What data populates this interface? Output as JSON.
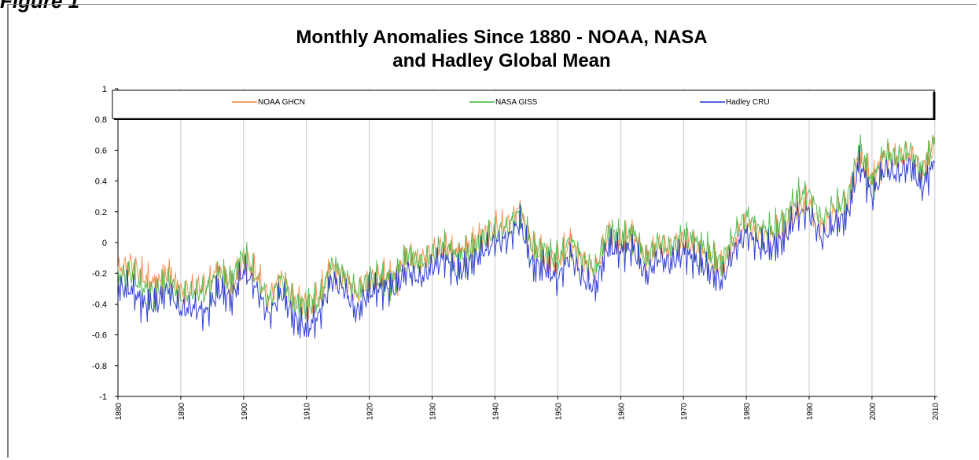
{
  "figure_label": "Figure 1",
  "chart_data": {
    "type": "line",
    "title": "Monthly Anomalies Since 1880 - NOAA, NASA and Hadley Global Mean",
    "title_lines": [
      "Monthly Anomalies Since 1880 - NOAA, NASA",
      "and Hadley Global Mean"
    ],
    "xlabel": "",
    "ylabel": "",
    "xlim": [
      1880,
      2010.4
    ],
    "ylim": [
      -1,
      1
    ],
    "y_ticks": [
      1,
      0.8,
      0.6,
      0.4,
      0.2,
      0,
      -0.2,
      -0.4,
      -0.6,
      -0.8,
      -1
    ],
    "y_tick_labels": [
      "1",
      "0.8",
      "0.6",
      "0.4",
      "0.2",
      "0",
      "-0.2",
      "-0.4",
      "-0.6",
      "-0.8",
      "-1"
    ],
    "x_tick_labels": [
      "1880",
      "1890",
      "1900",
      "1910",
      "1920",
      "1930",
      "1940",
      "1950",
      "1960",
      "1970",
      "1980",
      "1990",
      "2000",
      "2010"
    ],
    "grid": "vertical",
    "legend_position": "top",
    "series": [
      {
        "name": "NOAA GHCN",
        "color": "#f4843c",
        "x": [
          1880,
          1882,
          1884,
          1886,
          1888,
          1890,
          1892,
          1894,
          1896,
          1898,
          1900,
          1902,
          1904,
          1906,
          1908,
          1910,
          1912,
          1914,
          1916,
          1918,
          1920,
          1922,
          1924,
          1926,
          1928,
          1930,
          1932,
          1934,
          1936,
          1938,
          1940,
          1942,
          1944,
          1946,
          1948,
          1950,
          1952,
          1954,
          1956,
          1958,
          1960,
          1962,
          1964,
          1966,
          1968,
          1970,
          1972,
          1974,
          1976,
          1978,
          1980,
          1982,
          1984,
          1986,
          1988,
          1990,
          1992,
          1994,
          1996,
          1998,
          2000,
          2002,
          2004,
          2006,
          2008,
          2010
        ],
        "y": [
          -0.18,
          -0.14,
          -0.22,
          -0.28,
          -0.2,
          -0.32,
          -0.3,
          -0.28,
          -0.18,
          -0.3,
          -0.1,
          -0.2,
          -0.36,
          -0.22,
          -0.38,
          -0.4,
          -0.36,
          -0.16,
          -0.24,
          -0.34,
          -0.24,
          -0.22,
          -0.24,
          -0.1,
          -0.12,
          -0.06,
          -0.02,
          -0.08,
          -0.04,
          0.04,
          0.1,
          0.12,
          0.22,
          -0.04,
          -0.08,
          -0.12,
          0.0,
          -0.12,
          -0.2,
          0.06,
          0.0,
          0.04,
          -0.12,
          -0.02,
          -0.04,
          0.02,
          -0.04,
          -0.1,
          -0.16,
          0.0,
          0.12,
          0.06,
          0.04,
          0.08,
          0.24,
          0.26,
          0.1,
          0.2,
          0.22,
          0.58,
          0.4,
          0.56,
          0.54,
          0.58,
          0.46,
          0.64
        ]
      },
      {
        "name": "NASA GISS",
        "color": "#3cb43c",
        "x": [
          1880,
          1882,
          1884,
          1886,
          1888,
          1890,
          1892,
          1894,
          1896,
          1898,
          1900,
          1902,
          1904,
          1906,
          1908,
          1910,
          1912,
          1914,
          1916,
          1918,
          1920,
          1922,
          1924,
          1926,
          1928,
          1930,
          1932,
          1934,
          1936,
          1938,
          1940,
          1942,
          1944,
          1946,
          1948,
          1950,
          1952,
          1954,
          1956,
          1958,
          1960,
          1962,
          1964,
          1966,
          1968,
          1970,
          1972,
          1974,
          1976,
          1978,
          1980,
          1982,
          1984,
          1986,
          1988,
          1990,
          1992,
          1994,
          1996,
          1998,
          2000,
          2002,
          2004,
          2006,
          2008,
          2010
        ],
        "y": [
          -0.22,
          -0.2,
          -0.3,
          -0.32,
          -0.24,
          -0.36,
          -0.32,
          -0.32,
          -0.2,
          -0.26,
          -0.08,
          -0.22,
          -0.38,
          -0.24,
          -0.4,
          -0.42,
          -0.38,
          -0.14,
          -0.22,
          -0.32,
          -0.24,
          -0.24,
          -0.24,
          -0.08,
          -0.14,
          -0.08,
          -0.02,
          -0.1,
          -0.06,
          0.02,
          0.06,
          0.1,
          0.2,
          -0.04,
          -0.06,
          -0.12,
          0.02,
          -0.12,
          -0.18,
          0.08,
          0.02,
          0.06,
          -0.12,
          0.0,
          -0.04,
          0.04,
          0.0,
          -0.06,
          -0.14,
          0.04,
          0.18,
          0.08,
          0.08,
          0.14,
          0.3,
          0.32,
          0.14,
          0.24,
          0.26,
          0.6,
          0.38,
          0.58,
          0.54,
          0.6,
          0.44,
          0.68
        ]
      },
      {
        "name": "Hadley CRU",
        "color": "#2030d0",
        "x": [
          1880,
          1882,
          1884,
          1886,
          1888,
          1890,
          1892,
          1894,
          1896,
          1898,
          1900,
          1902,
          1904,
          1906,
          1908,
          1910,
          1912,
          1914,
          1916,
          1918,
          1920,
          1922,
          1924,
          1926,
          1928,
          1930,
          1932,
          1934,
          1936,
          1938,
          1940,
          1942,
          1944,
          1946,
          1948,
          1950,
          1952,
          1954,
          1956,
          1958,
          1960,
          1962,
          1964,
          1966,
          1968,
          1970,
          1972,
          1974,
          1976,
          1978,
          1980,
          1982,
          1984,
          1986,
          1988,
          1990,
          1992,
          1994,
          1996,
          1998,
          2000,
          2002,
          2004,
          2006,
          2008,
          2010
        ],
        "y": [
          -0.3,
          -0.3,
          -0.4,
          -0.4,
          -0.3,
          -0.44,
          -0.42,
          -0.46,
          -0.3,
          -0.38,
          -0.18,
          -0.3,
          -0.48,
          -0.32,
          -0.5,
          -0.56,
          -0.48,
          -0.24,
          -0.3,
          -0.46,
          -0.32,
          -0.3,
          -0.3,
          -0.18,
          -0.24,
          -0.16,
          -0.1,
          -0.2,
          -0.14,
          -0.06,
          0.0,
          0.02,
          0.14,
          -0.16,
          -0.16,
          -0.24,
          -0.08,
          -0.24,
          -0.3,
          -0.02,
          -0.06,
          -0.04,
          -0.22,
          -0.1,
          -0.14,
          -0.06,
          -0.12,
          -0.18,
          -0.26,
          -0.06,
          0.06,
          -0.02,
          -0.04,
          0.02,
          0.18,
          0.2,
          0.02,
          0.12,
          0.16,
          0.52,
          0.3,
          0.48,
          0.44,
          0.5,
          0.36,
          0.52
        ]
      }
    ]
  }
}
